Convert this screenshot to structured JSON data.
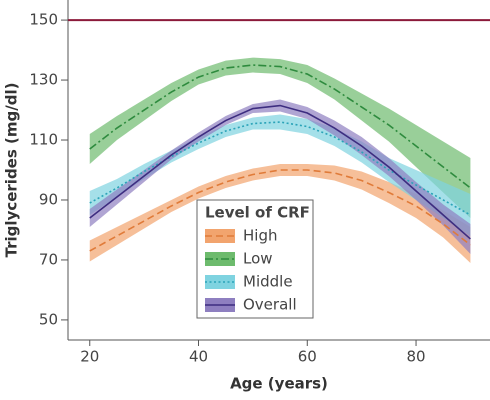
{
  "chart_data": {
    "type": "band-line",
    "xlabel": "Age (years)",
    "ylabel": "Triglycerides (mg/dl)",
    "x": [
      20,
      25,
      30,
      35,
      40,
      45,
      50,
      55,
      60,
      65,
      70,
      75,
      80,
      85,
      90
    ],
    "xlim": [
      16,
      93.6
    ],
    "xticks": [
      20,
      40,
      60,
      80
    ],
    "ylim": [
      43.3,
      156.7
    ],
    "yticks": [
      50,
      70,
      90,
      110,
      130,
      150
    ],
    "reference_line": {
      "value": 150,
      "color": "#8b1a3a"
    },
    "legend": {
      "title": "Level of CRF",
      "position": "lower center"
    },
    "series": [
      {
        "name": "High",
        "color": "#e07b39",
        "band_color": "#f2a46e",
        "dash": "dashed",
        "values": [
          73,
          78,
          83,
          88,
          92.5,
          96,
          98.5,
          100,
          100,
          99,
          96.5,
          92.5,
          88,
          82,
          75
        ],
        "lower": [
          69.5,
          75,
          80.5,
          86,
          90.5,
          94,
          96.5,
          98,
          98,
          96.5,
          93.5,
          89,
          84,
          77.5,
          69
        ],
        "upper": [
          76.5,
          81,
          85.5,
          90,
          94.5,
          98,
          100.5,
          102,
          102,
          101.5,
          99.5,
          96,
          92,
          86.5,
          81
        ]
      },
      {
        "name": "Low",
        "color": "#2e8b3e",
        "band_color": "#6dbb6d",
        "dash": "dashdot",
        "values": [
          107,
          114,
          120,
          126,
          131,
          134,
          135,
          134.5,
          132,
          127,
          121,
          115,
          108,
          101,
          94
        ],
        "lower": [
          102,
          110,
          116.5,
          123,
          128.5,
          131.5,
          132.5,
          132,
          129,
          123.5,
          116.5,
          109.5,
          101,
          92.5,
          84
        ],
        "upper": [
          112,
          118,
          123.5,
          129,
          133.5,
          136.5,
          137.5,
          137,
          135,
          130.5,
          125.5,
          120.5,
          115,
          109.5,
          104
        ]
      },
      {
        "name": "Middle",
        "color": "#2aa3b8",
        "band_color": "#7fd3e0",
        "dash": "dotted",
        "values": [
          89,
          94,
          99.5,
          104.5,
          109,
          113,
          115.5,
          116,
          114.5,
          111,
          106,
          100,
          95,
          90,
          85
        ],
        "lower": [
          85,
          91,
          97,
          102.5,
          107,
          111,
          113.5,
          113.5,
          112,
          108,
          102.5,
          96,
          90,
          84,
          78
        ],
        "upper": [
          93,
          97,
          102,
          106.5,
          111,
          115,
          117.5,
          118.5,
          117,
          114,
          109.5,
          104,
          100,
          96,
          92
        ]
      },
      {
        "name": "Overall",
        "color": "#3d2d80",
        "band_color": "#8e7fc0",
        "dash": "solid",
        "values": [
          84,
          91,
          98,
          105,
          111,
          116.5,
          120.5,
          121.5,
          119,
          114,
          108,
          101,
          93,
          85,
          77
        ],
        "lower": [
          81,
          88.5,
          96,
          103.5,
          109.5,
          115,
          119,
          119.5,
          117,
          111.5,
          105,
          98,
          90,
          81.5,
          72
        ],
        "upper": [
          87,
          93.5,
          100,
          106.5,
          112.5,
          118,
          122,
          123.5,
          121,
          116.5,
          111,
          104,
          96,
          88.5,
          82
        ]
      }
    ]
  }
}
